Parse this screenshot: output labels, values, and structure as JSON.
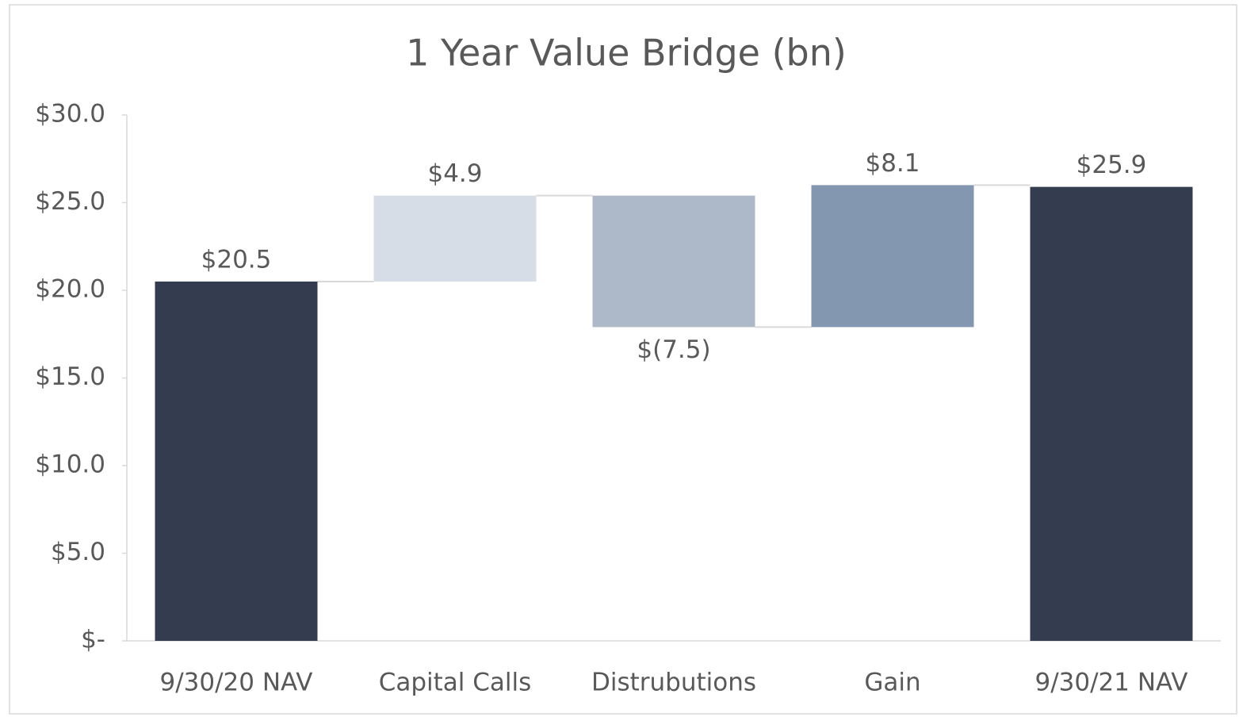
{
  "chart_data": {
    "type": "waterfall",
    "title": "1 Year Value Bridge (bn)",
    "categories": [
      "9/30/20 NAV",
      "Capital Calls",
      "Distrubutions",
      "Gain",
      "9/30/21 NAV"
    ],
    "values": [
      20.5,
      4.9,
      -7.5,
      8.1,
      25.9
    ],
    "value_labels": [
      "$20.5",
      "$4.9",
      "$(7.5)",
      "$8.1",
      "$25.9"
    ],
    "totals": [
      true,
      false,
      false,
      false,
      true
    ],
    "colors": [
      "#333d4f",
      "#d6dde6",
      "#adb8c9",
      "#8497b0",
      "#333d4f"
    ],
    "ylim": [
      0,
      30
    ],
    "yticks": [
      {
        "value": 0,
        "label": "$-"
      },
      {
        "value": 5,
        "label": "$5.0"
      },
      {
        "value": 10,
        "label": "$10.0"
      },
      {
        "value": 15,
        "label": "$15.0"
      },
      {
        "value": 20,
        "label": "$20.0"
      },
      {
        "value": 25,
        "label": "$25.0"
      },
      {
        "value": 30,
        "label": "$30.0"
      }
    ],
    "grid": false
  }
}
